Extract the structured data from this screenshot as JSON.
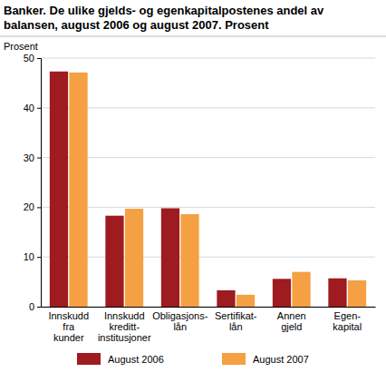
{
  "chart_data": {
    "type": "bar",
    "title": "Banker. De ulike gjelds- og egenkapitalpostenes andel av balansen, august 2006 og august 2007. Prosent",
    "ylabel": "Prosent",
    "categories": [
      "Innskudd\nfra\nkunder",
      "Innskudd\nkreditt-\ninstitusjoner",
      "Obligasjons-\nlån",
      "Sertifikat-\nlån",
      "Annen\ngjeld",
      "Egen-\nkapital"
    ],
    "series": [
      {
        "name": "August 2006",
        "color": "#9e1b20",
        "values": [
          47.3,
          18.3,
          19.8,
          3.3,
          5.6,
          5.7
        ]
      },
      {
        "name": "August 2007",
        "color": "#f5a043",
        "values": [
          47.1,
          19.7,
          18.6,
          2.4,
          7.0,
          5.3
        ]
      }
    ],
    "ylim": [
      0,
      50
    ],
    "yticks": [
      0,
      10,
      20,
      30,
      40,
      50
    ],
    "grid": true,
    "legend": "bottom"
  }
}
